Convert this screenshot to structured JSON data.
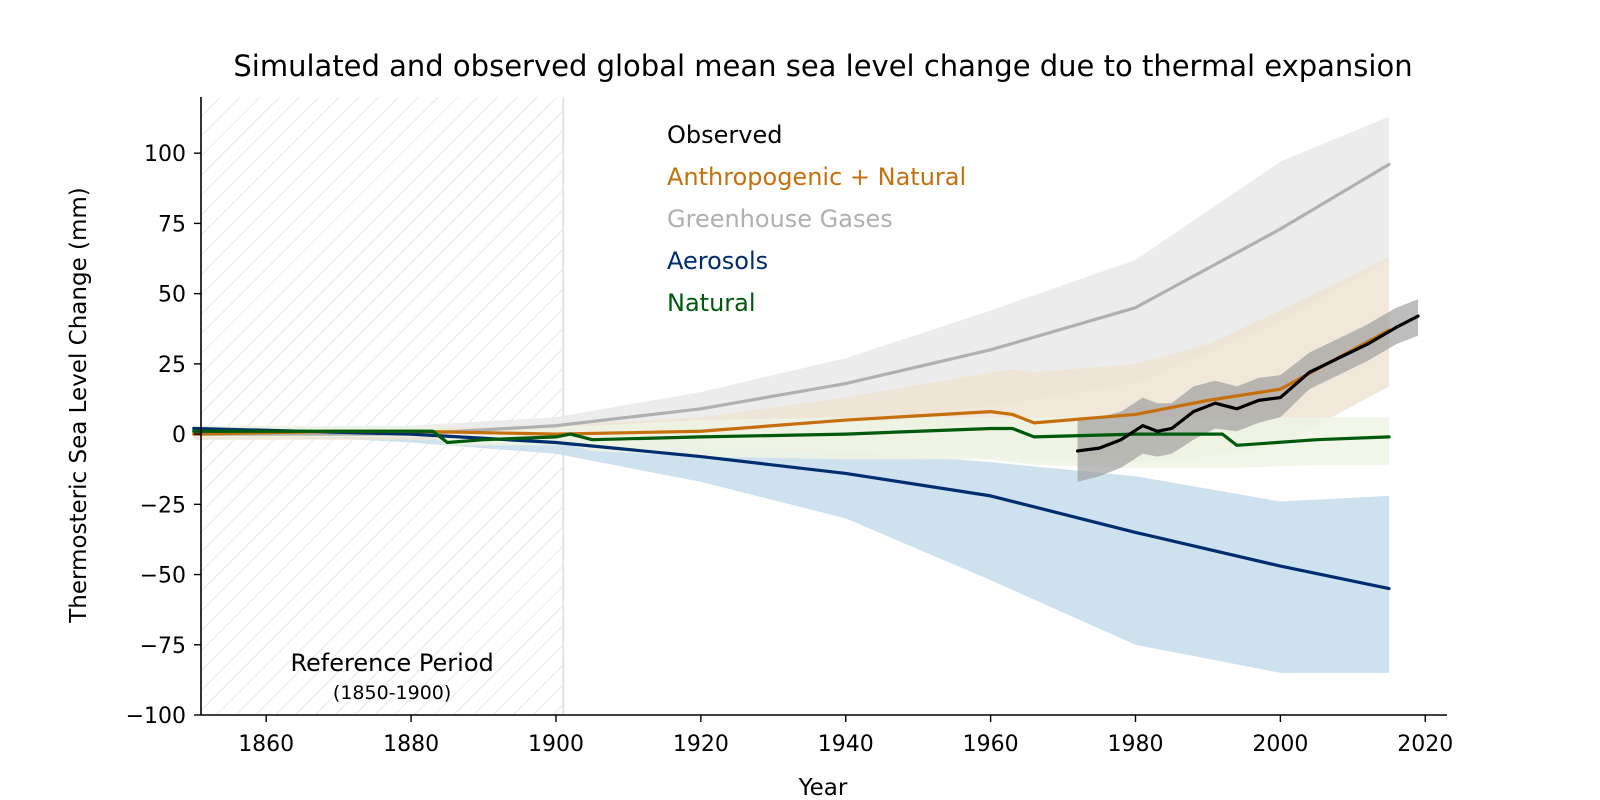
{
  "chart_data": {
    "type": "line",
    "title": "Simulated and observed global mean sea level change due to thermal expansion",
    "xlabel": "Year",
    "ylabel": "Thermosteric Sea Level Change (mm)",
    "xlim": [
      1851,
      2023
    ],
    "ylim": [
      -100,
      120
    ],
    "x_ticks": [
      1860,
      1880,
      1900,
      1920,
      1940,
      1960,
      1980,
      2000,
      2020
    ],
    "y_ticks": [
      -100,
      -75,
      -50,
      -25,
      0,
      25,
      50,
      75,
      100
    ],
    "x_tick_labels": [
      "1860",
      "1880",
      "1900",
      "1920",
      "1940",
      "1960",
      "1980",
      "2000",
      "2020"
    ],
    "y_tick_labels": [
      "−100",
      "−75",
      "−50",
      "−25",
      "0",
      "25",
      "50",
      "75",
      "100"
    ],
    "grid": false,
    "legend_placement": "top-center",
    "reference_period": {
      "label": "Reference Period",
      "sublabel": "(1850-1900)",
      "start": 1850,
      "end": 1901
    },
    "series": [
      {
        "name": "Greenhouse Gases",
        "color": "#b0b0b0",
        "band_color": "#e9e9e9",
        "x": [
          1850,
          1880,
          1900,
          1920,
          1940,
          1960,
          1980,
          2000,
          2015
        ],
        "values": [
          0,
          0,
          3,
          9,
          18,
          30,
          45,
          73,
          96
        ],
        "lower": [
          -1,
          -2,
          -2,
          0,
          4,
          10,
          18,
          40,
          62
        ],
        "upper": [
          1,
          3,
          6,
          15,
          27,
          44,
          62,
          97,
          113
        ]
      },
      {
        "name": "Aerosols",
        "color": "#002d6e",
        "band_color": "#c4dcec",
        "x": [
          1850,
          1880,
          1900,
          1920,
          1940,
          1960,
          1980,
          2000,
          2015
        ],
        "values": [
          2,
          0,
          -3,
          -8,
          -14,
          -22,
          -35,
          -47,
          -55
        ],
        "lower": [
          1,
          -3,
          -7,
          -17,
          -30,
          -52,
          -75,
          -85,
          -85
        ],
        "upper": [
          3,
          2,
          0,
          -3,
          -6,
          -10,
          -15,
          -24,
          -22
        ]
      },
      {
        "name": "Anthropogenic + Natural",
        "color": "#c6700d",
        "band_color": "#efe4d2",
        "x": [
          1850,
          1870,
          1880,
          1900,
          1920,
          1940,
          1960,
          1963,
          1966,
          1980,
          1990,
          2000,
          2015
        ],
        "values": [
          0,
          1,
          1,
          0,
          1,
          5,
          8,
          7,
          4,
          7,
          12,
          16,
          37
        ],
        "lower": [
          -2,
          -2,
          -2,
          -3,
          -5,
          -7,
          -8,
          -8,
          -9,
          -10,
          -8,
          -4,
          17
        ],
        "upper": [
          2,
          2,
          2,
          3,
          6,
          13,
          22,
          23,
          22,
          25,
          32,
          44,
          63
        ]
      },
      {
        "name": "Natural",
        "color": "#005a0c",
        "band_color": "#eef4e4",
        "x": [
          1850,
          1870,
          1883,
          1885,
          1890,
          1900,
          1902,
          1905,
          1920,
          1940,
          1960,
          1963,
          1966,
          1980,
          1992,
          1994,
          2005,
          2015
        ],
        "values": [
          1,
          1,
          1,
          -3,
          -2,
          -1,
          0,
          -2,
          -1,
          0,
          2,
          2,
          -1,
          0,
          0,
          -4,
          -2,
          -1
        ],
        "lower": [
          -1,
          -1,
          -1,
          -4,
          -4,
          -4,
          -4,
          -6,
          -8,
          -9,
          -9,
          -10,
          -11,
          -12,
          -12,
          -12,
          -11,
          -11
        ],
        "upper": [
          3,
          3,
          3,
          1,
          1,
          2,
          3,
          3,
          5,
          6,
          6,
          6,
          6,
          6,
          6,
          6,
          6,
          6
        ]
      },
      {
        "name": "Observed",
        "color": "#000000",
        "band_color": "#9a9a9a",
        "x": [
          1972,
          1975,
          1978,
          1981,
          1983,
          1985,
          1988,
          1991,
          1994,
          1997,
          2000,
          2004,
          2008,
          2012,
          2016,
          2019
        ],
        "values": [
          -6,
          -5,
          -2,
          3,
          1,
          2,
          8,
          11,
          9,
          12,
          13,
          22,
          27,
          32,
          38,
          42
        ],
        "lower": [
          -17,
          -15,
          -12,
          -7,
          -8,
          -7,
          -2,
          2,
          1,
          4,
          6,
          16,
          21,
          26,
          32,
          35
        ],
        "upper": [
          5,
          6,
          8,
          13,
          11,
          11,
          17,
          19,
          17,
          20,
          21,
          29,
          34,
          39,
          45,
          48
        ]
      }
    ],
    "legend_order": [
      "Observed",
      "Anthropogenic + Natural",
      "Greenhouse Gases",
      "Aerosols",
      "Natural"
    ]
  }
}
